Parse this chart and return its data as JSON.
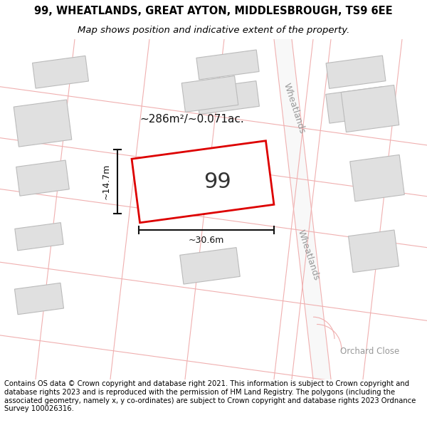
{
  "title_line1": "99, WHEATLANDS, GREAT AYTON, MIDDLESBROUGH, TS9 6EE",
  "title_line2": "Map shows position and indicative extent of the property.",
  "footer_text": "Contains OS data © Crown copyright and database right 2021. This information is subject to Crown copyright and database rights 2023 and is reproduced with the permission of HM Land Registry. The polygons (including the associated geometry, namely x, y co-ordinates) are subject to Crown copyright and database rights 2023 Ordnance Survey 100026316.",
  "area_text": "~286m²/~0.071ac.",
  "plot_number": "99",
  "dim_width": "~30.6m",
  "dim_height": "~14.7m",
  "background_color": "#ffffff",
  "map_bg_color": "#ffffff",
  "road_line_color": "#f0b0b0",
  "highlight_color": "#dd0000",
  "building_fill": "#e0e0e0",
  "building_edge": "#bbbbbb",
  "road_label_color": "#999999",
  "title_fontsize": 10.5,
  "subtitle_fontsize": 9.5,
  "footer_fontsize": 7.2,
  "plot_label_fontsize": 22,
  "area_fontsize": 11,
  "dim_fontsize": 9,
  "road_label_fontsize": 9
}
